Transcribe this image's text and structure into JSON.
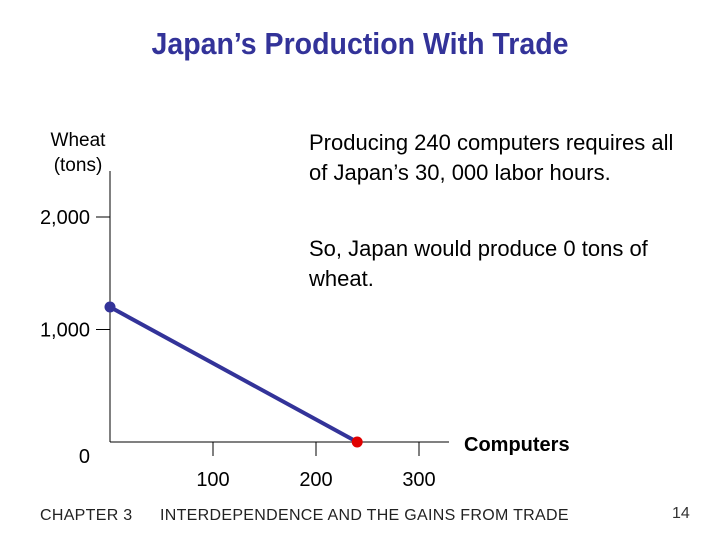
{
  "header": {
    "title": "Japan’s Production With Trade"
  },
  "annotation": {
    "line1": "Producing 240 computers requires all of Japan’s 30, 000 labor hours.",
    "line2": "So, Japan would produce 0 tons of wheat."
  },
  "footer": {
    "chapter": "CHAPTER 3",
    "section": "INTERDEPENDENCE AND THE GAINS FROM TRADE",
    "page": "14"
  },
  "chart_data": {
    "type": "line",
    "xlabel": "Computers",
    "ylabel": "Wheat (tons)",
    "xlim": [
      0,
      300
    ],
    "ylim": [
      0,
      2000
    ],
    "x_ticks": [
      100,
      200,
      300
    ],
    "x_tick_labels": [
      "100",
      "200",
      "300"
    ],
    "y_ticks": [
      0,
      1000,
      2000
    ],
    "y_tick_labels": [
      "0",
      "1,000",
      "2,000"
    ],
    "series": [
      {
        "x": [
          0,
          240
        ],
        "y": [
          1200,
          0
        ],
        "color": "#333399"
      }
    ],
    "points": [
      {
        "x": 0,
        "y": 1200,
        "color": "#333399"
      },
      {
        "x": 240,
        "y": 0,
        "color": "#e00000"
      }
    ]
  }
}
